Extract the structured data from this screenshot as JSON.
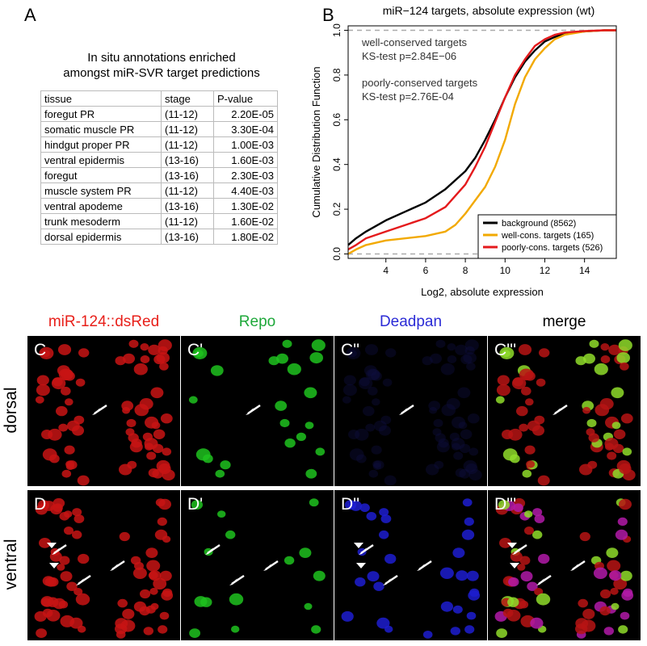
{
  "panel_a": {
    "letter": "A",
    "title_line1": "In situ annotations enriched",
    "title_line2": "amongst miR-SVR target predictions",
    "columns": [
      "tissue",
      "stage",
      "P-value"
    ],
    "rows": [
      [
        "foregut PR",
        "(11-12)",
        "2.20E-05"
      ],
      [
        "somatic muscle PR",
        "(11-12)",
        "3.30E-04"
      ],
      [
        "hindgut proper PR",
        "(11-12)",
        "1.00E-03"
      ],
      [
        "ventral epidermis",
        "(13-16)",
        "1.60E-03"
      ],
      [
        "foregut",
        "(13-16)",
        "2.30E-03"
      ],
      [
        "muscle system PR",
        "(11-12)",
        "4.40E-03"
      ],
      [
        "ventral apodeme",
        "(13-16)",
        "1.30E-02"
      ],
      [
        "trunk mesoderm",
        "(11-12)",
        "1.60E-02"
      ],
      [
        "dorsal epidermis",
        "(13-16)",
        "1.80E-02"
      ]
    ]
  },
  "panel_b": {
    "letter": "B",
    "annotation1_line1": "well-conserved targets",
    "annotation1_line2": "KS-test  p=2.84E−06",
    "annotation2_line1": "poorly-conserved targets",
    "annotation2_line2": "KS-test  p=2.76E-04"
  },
  "chart_data": {
    "type": "line",
    "title": "miR−124 targets, absolute expression (wt)",
    "xlabel": "Log2, absolute expression",
    "ylabel": "Cumulative Distribution Function",
    "xlim": [
      2.1,
      15.6
    ],
    "ylim": [
      -0.02,
      1.02
    ],
    "xticks": [
      4,
      6,
      8,
      10,
      12,
      14
    ],
    "yticks": [
      "0.0",
      "0.2",
      "0.4",
      "0.6",
      "0.8",
      "1.0"
    ],
    "reference_lines": [
      0,
      1
    ],
    "legend_position": "bottom-right",
    "series": [
      {
        "name": "background (8562)",
        "color": "#000000",
        "x": [
          2.1,
          2.5,
          3,
          4,
          5,
          6,
          7,
          8,
          8.5,
          9,
          9.5,
          10,
          10.5,
          11,
          11.5,
          12,
          12.5,
          13,
          14,
          15,
          15.6
        ],
        "y": [
          0.04,
          0.07,
          0.1,
          0.15,
          0.19,
          0.23,
          0.29,
          0.37,
          0.43,
          0.51,
          0.6,
          0.7,
          0.79,
          0.86,
          0.91,
          0.95,
          0.97,
          0.985,
          0.995,
          1.0,
          1.0
        ]
      },
      {
        "name": "well-cons. targets (165)",
        "color": "#f2a900",
        "x": [
          2.1,
          2.5,
          3,
          4,
          5,
          6,
          7,
          7.5,
          8,
          8.5,
          9,
          9.5,
          10,
          10.5,
          11,
          11.5,
          12,
          12.5,
          13,
          14,
          15,
          15.6
        ],
        "y": [
          0.0,
          0.02,
          0.04,
          0.06,
          0.07,
          0.08,
          0.1,
          0.13,
          0.18,
          0.24,
          0.3,
          0.39,
          0.51,
          0.67,
          0.79,
          0.87,
          0.92,
          0.96,
          0.98,
          0.995,
          1.0,
          1.0
        ]
      },
      {
        "name": "poorly-cons. targets (526)",
        "color": "#e41a1c",
        "x": [
          2.1,
          2.5,
          3,
          4,
          5,
          6,
          7,
          8,
          8.5,
          9,
          9.5,
          10,
          10.5,
          11,
          11.5,
          12,
          12.5,
          13,
          14,
          15,
          15.6
        ],
        "y": [
          0.02,
          0.04,
          0.07,
          0.1,
          0.13,
          0.16,
          0.21,
          0.31,
          0.39,
          0.48,
          0.59,
          0.7,
          0.8,
          0.87,
          0.93,
          0.96,
          0.98,
          0.99,
          0.997,
          1.0,
          1.0
        ]
      }
    ]
  },
  "panels_c_d": {
    "column_labels": [
      {
        "text": "miR-124::dsRed",
        "color": "#e8201a"
      },
      {
        "text": "Repo",
        "color": "#1ea83a"
      },
      {
        "text": "Deadpan",
        "color": "#2b2bd6"
      },
      {
        "text": "merge",
        "color": "#000000"
      }
    ],
    "row_labels": [
      "dorsal",
      "ventral"
    ],
    "panel_labels": [
      [
        "C",
        "C'",
        "C''",
        "C'''"
      ],
      [
        "D",
        "D'",
        "D''",
        "D'''"
      ]
    ]
  }
}
